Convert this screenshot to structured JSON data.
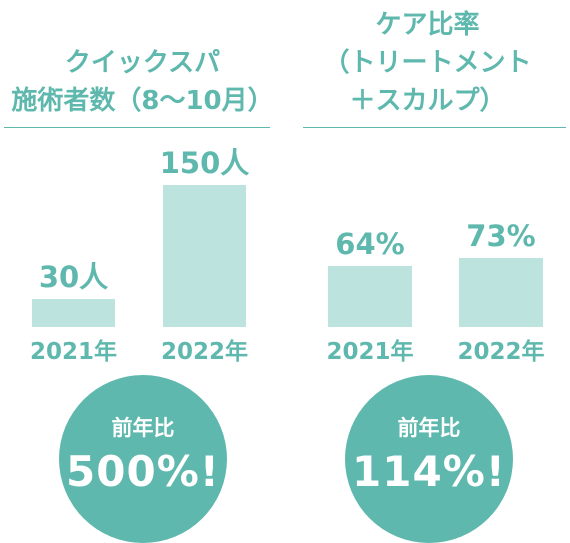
{
  "chart_data": [
    {
      "type": "bar",
      "title_lines": [
        "クイックスパ",
        "施術者数（8～10月）"
      ],
      "categories": [
        "2021年",
        "2022年"
      ],
      "values": [
        30,
        150
      ],
      "value_labels": [
        "30人",
        "150人"
      ],
      "ylim": [
        0,
        150
      ],
      "grid": false,
      "bar_color": "#bde3df",
      "accent_color": "#5fb8ad",
      "badge": {
        "label": "前年比",
        "value": "500%!"
      }
    },
    {
      "type": "bar",
      "title_lines": [
        "ケア比率",
        "（トリートメント",
        "＋スカルプ）"
      ],
      "categories": [
        "2021年",
        "2022年"
      ],
      "values": [
        64,
        73
      ],
      "value_labels": [
        "64%",
        "73%"
      ],
      "ylim": [
        0,
        150
      ],
      "grid": false,
      "bar_color": "#bde3df",
      "accent_color": "#5fb8ad",
      "badge": {
        "label": "前年比",
        "value": "114%!"
      }
    }
  ]
}
